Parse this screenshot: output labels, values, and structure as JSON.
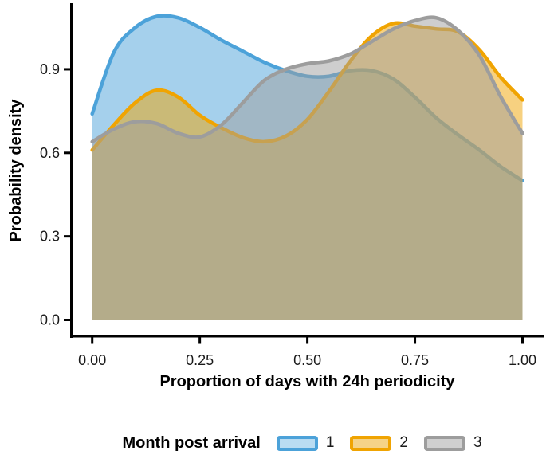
{
  "figure": {
    "background": "#ffffff",
    "text_color": "#1a1a1a",
    "axis_color": "#000000"
  },
  "chart_data": {
    "type": "area",
    "subtype": "overlapping-density-curves",
    "title": "",
    "xlabel": "Proportion of days with 24h periodicity",
    "ylabel": "Probability density",
    "xlim": [
      0,
      1
    ],
    "ylim": [
      0,
      1.14
    ],
    "grid": false,
    "fill_opacity": 0.5,
    "line_width": 4.5,
    "xticks": {
      "values": [
        0,
        0.25,
        0.5,
        0.75,
        1.0
      ],
      "labels": [
        "0.00",
        "0.25",
        "0.50",
        "0.75",
        "1.00"
      ]
    },
    "yticks": {
      "values": [
        0,
        0.3,
        0.6,
        0.9
      ],
      "labels": [
        "0.0",
        "0.3",
        "0.6",
        "0.9"
      ]
    },
    "x": [
      0,
      0.05,
      0.1,
      0.15,
      0.2,
      0.25,
      0.3,
      0.35,
      0.4,
      0.45,
      0.5,
      0.55,
      0.6,
      0.65,
      0.7,
      0.75,
      0.8,
      0.85,
      0.9,
      0.95,
      1.0
    ],
    "series": [
      {
        "name": "1",
        "line_color": "#4ca2d9",
        "swatch_fill": "#b9dcf2",
        "values": [
          0.74,
          0.96,
          1.05,
          1.09,
          1.085,
          1.05,
          1.005,
          0.965,
          0.925,
          0.895,
          0.875,
          0.875,
          0.895,
          0.895,
          0.865,
          0.8,
          0.725,
          0.665,
          0.61,
          0.55,
          0.5
        ]
      },
      {
        "name": "2",
        "line_color": "#f0a402",
        "swatch_fill": "#f5d388",
        "values": [
          0.61,
          0.7,
          0.78,
          0.825,
          0.8,
          0.735,
          0.69,
          0.655,
          0.64,
          0.66,
          0.72,
          0.82,
          0.93,
          1.02,
          1.065,
          1.055,
          1.045,
          1.035,
          0.97,
          0.87,
          0.79
        ]
      },
      {
        "name": "3",
        "line_color": "#9d9d9d",
        "swatch_fill": "#d0d0d0",
        "values": [
          0.64,
          0.685,
          0.712,
          0.705,
          0.67,
          0.657,
          0.7,
          0.78,
          0.86,
          0.9,
          0.92,
          0.93,
          0.955,
          1.0,
          1.045,
          1.075,
          1.085,
          1.04,
          0.95,
          0.8,
          0.67
        ]
      }
    ],
    "legend": {
      "title": "Month post arrival",
      "position": "bottom",
      "entries": [
        "1",
        "2",
        "3"
      ]
    }
  }
}
